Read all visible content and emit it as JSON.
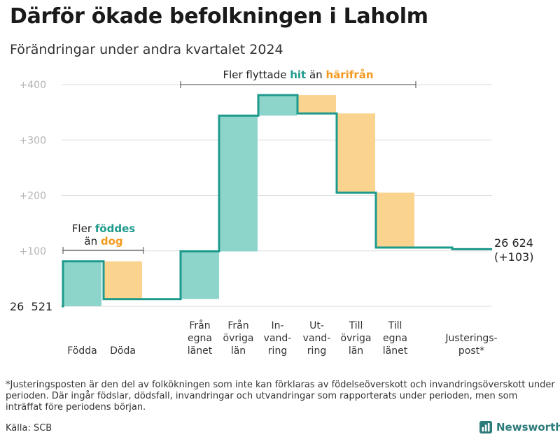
{
  "title": "Därför ökade befolkningen i Laholm",
  "subtitle": "Förändringar under andra kvartalet 2024",
  "chart_data": {
    "type": "waterfall",
    "baseline_value": 26521,
    "baseline_label": "26  521",
    "end_label_value": "26 624",
    "end_label_change": "(+103)",
    "ylim": [
      0,
      400
    ],
    "ytick_values": [
      100,
      200,
      300,
      400
    ],
    "ytick_labels": [
      "+100",
      "+200",
      "+300",
      "+400"
    ],
    "steps": [
      {
        "label": [
          "Födda"
        ],
        "change": 81,
        "kind": "in"
      },
      {
        "label": [
          "Döda"
        ],
        "change": -68,
        "kind": "out"
      },
      {
        "label": [
          "Från",
          "egna",
          "länet"
        ],
        "change": 86,
        "kind": "in"
      },
      {
        "label": [
          "Från",
          "övriga",
          "län"
        ],
        "change": 245,
        "kind": "in"
      },
      {
        "label": [
          "In-",
          "vand-",
          "ring"
        ],
        "change": 37,
        "kind": "in"
      },
      {
        "label": [
          "Ut-",
          "vand-",
          "ring"
        ],
        "change": -33,
        "kind": "out"
      },
      {
        "label": [
          "Till",
          "övriga",
          "län"
        ],
        "change": -143,
        "kind": "out"
      },
      {
        "label": [
          "Till",
          "egna",
          "länet"
        ],
        "change": -99,
        "kind": "out"
      },
      {
        "label": [
          "Justerings-",
          "post*"
        ],
        "change": -3,
        "kind": "adjust"
      }
    ],
    "annotations": {
      "births": {
        "line1_pre": "Fler ",
        "line1_hl": "föddes",
        "line2_pre": "än ",
        "line2_hl": "dog"
      },
      "migration": {
        "pre": "Fler flyttade ",
        "hl1": "hit",
        "mid": " än ",
        "hl2": "härifrån"
      }
    },
    "colors": {
      "in": "#8dd4cb",
      "out": "#fad48f",
      "line": "#1e9a8c",
      "grid": "#dddddd",
      "hl_in": "#1e9a8c",
      "hl_out": "#f39a1e"
    }
  },
  "footnote": "*Justeringsposten är den del av folkökningen som inte kan förklaras av födelseöverskott och invandringsöverskott under perioden. Där ingår födslar, dödsfall, invandringar och utvandringar som rapporterats under perioden, men som inträffat före periodens början.",
  "source": "Källa: SCB",
  "brand": {
    "name": "Newsworthy",
    "icon": "newsworthy-logo-icon"
  }
}
